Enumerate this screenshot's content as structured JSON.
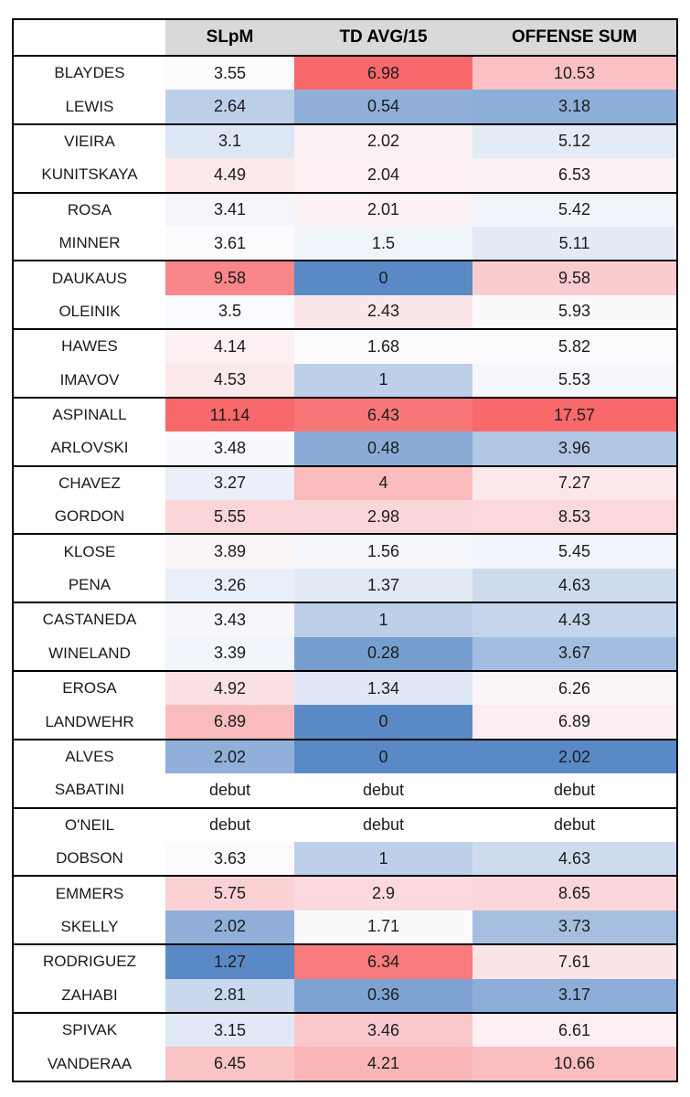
{
  "colors": {
    "background": "#FFFFFF",
    "header_bg": "#D9D9D9",
    "border": "#000000",
    "text": "#1C1C1C"
  },
  "chart_data": {
    "type": "table",
    "title": "",
    "columns": [
      "",
      "SLpM",
      "TD AVG/15",
      "OFFENSE SUM"
    ],
    "color_scale": {
      "description": "3-color conditional formatting scale applied per column",
      "min_color": "#5A8AC6",
      "mid_color": "#FCFCFF",
      "max_color": "#F8696B"
    },
    "grouping": "rows grouped in matchup pairs separated by black borders",
    "rows": [
      {
        "name": "BLAYDES",
        "values": [
          "3.55",
          "6.98",
          "10.53"
        ],
        "cell_colors": [
          "#FCFBFE",
          "#F8696B",
          "#FAC0C3"
        ]
      },
      {
        "name": "LEWIS",
        "values": [
          "2.64",
          "0.54",
          "3.18"
        ],
        "cell_colors": [
          "#BCCFE9",
          "#90B0D9",
          "#8DAED8"
        ]
      },
      {
        "name": "VIEIRA",
        "values": [
          "3.1",
          "2.02",
          "5.12"
        ],
        "cell_colors": [
          "#DDE6F4",
          "#FCF1F4",
          "#E3EBF6"
        ]
      },
      {
        "name": "KUNITSKAYA",
        "values": [
          "4.49",
          "2.04",
          "6.53"
        ],
        "cell_colors": [
          "#FBE9EC",
          "#FCF0F3",
          "#FCF1F4"
        ]
      },
      {
        "name": "ROSA",
        "values": [
          "3.41",
          "2.01",
          "5.42"
        ],
        "cell_colors": [
          "#F4F6FC",
          "#FCF1F4",
          "#F1F4FB"
        ]
      },
      {
        "name": "MINNER",
        "values": [
          "3.61",
          "1.5",
          "5.11"
        ],
        "cell_colors": [
          "#FCFAFD",
          "#F0F4FB",
          "#E3EAF6"
        ]
      },
      {
        "name": "DAUKAUS",
        "values": [
          "9.58",
          "0",
          "9.58"
        ],
        "cell_colors": [
          "#F98789",
          "#5A8AC6",
          "#FBCCCE"
        ]
      },
      {
        "name": "OLEINIK",
        "values": [
          "3.5",
          "2.43",
          "5.93"
        ],
        "cell_colors": [
          "#FAFBFE",
          "#FBE6E9",
          "#FCF9FC"
        ]
      },
      {
        "name": "HAWES",
        "values": [
          "4.14",
          "1.68",
          "5.82"
        ],
        "cell_colors": [
          "#FCF0F3",
          "#FCFAFD",
          "#FCFAFD"
        ]
      },
      {
        "name": "IMAVOV",
        "values": [
          "4.53",
          "1",
          "5.53"
        ],
        "cell_colors": [
          "#FBE9EB",
          "#BED0E9",
          "#F6F7FD"
        ]
      },
      {
        "name": "ASPINALL",
        "values": [
          "11.14",
          "6.43",
          "17.57"
        ],
        "cell_colors": [
          "#F8696B",
          "#F8787A",
          "#F8696B"
        ]
      },
      {
        "name": "ARLOVSKI",
        "values": [
          "3.48",
          "0.48",
          "3.96"
        ],
        "cell_colors": [
          "#F9FAFE",
          "#8AACD7",
          "#B0C6E4"
        ]
      },
      {
        "name": "CHAVEZ",
        "values": [
          "3.27",
          "4",
          "7.27"
        ],
        "cell_colors": [
          "#EAEFF9",
          "#FABBBD",
          "#FCE8EB"
        ]
      },
      {
        "name": "GORDON",
        "values": [
          "5.55",
          "2.98",
          "8.53"
        ],
        "cell_colors": [
          "#FBD5D8",
          "#FBD7D9",
          "#FBD9DB"
        ]
      },
      {
        "name": "KLOSE",
        "values": [
          "3.89",
          "1.56",
          "5.45"
        ],
        "cell_colors": [
          "#FCF5F8",
          "#F6F8FD",
          "#F2F5FC"
        ]
      },
      {
        "name": "PENA",
        "values": [
          "3.26",
          "1.37",
          "4.63"
        ],
        "cell_colors": [
          "#E9EFF8",
          "#E3EAF6",
          "#CEDBEF"
        ]
      },
      {
        "name": "CASTANEDA",
        "values": [
          "3.43",
          "1",
          "4.43"
        ],
        "cell_colors": [
          "#F5F7FD",
          "#BED0E9",
          "#C5D5EC"
        ]
      },
      {
        "name": "WINELAND",
        "values": [
          "3.39",
          "0.28",
          "3.67"
        ],
        "cell_colors": [
          "#F2F5FC",
          "#769ECF",
          "#A3BDE0"
        ]
      },
      {
        "name": "EROSA",
        "values": [
          "4.92",
          "1.34",
          "6.26"
        ],
        "cell_colors": [
          "#FBE1E4",
          "#E0E8F5",
          "#FCF5F8"
        ]
      },
      {
        "name": "LANDWEHR",
        "values": [
          "6.89",
          "0",
          "6.89"
        ],
        "cell_colors": [
          "#FABBBE",
          "#5A8AC6",
          "#FCEDF0"
        ]
      },
      {
        "name": "ALVES",
        "values": [
          "2.02",
          "0",
          "2.02"
        ],
        "cell_colors": [
          "#90B0D9",
          "#5A8AC6",
          "#5A8AC6"
        ]
      },
      {
        "name": "SABATINI",
        "values": [
          "debut",
          "debut",
          "debut"
        ],
        "cell_colors": [
          "#FFFFFF",
          "#FFFFFF",
          "#FFFFFF"
        ]
      },
      {
        "name": "O'NEIL",
        "values": [
          "debut",
          "debut",
          "debut"
        ],
        "cell_colors": [
          "#FFFFFF",
          "#FFFFFF",
          "#FFFFFF"
        ]
      },
      {
        "name": "DOBSON",
        "values": [
          "3.63",
          "1",
          "4.63"
        ],
        "cell_colors": [
          "#FCFAFD",
          "#BED0E9",
          "#CEDBEF"
        ]
      },
      {
        "name": "EMMERS",
        "values": [
          "5.75",
          "2.9",
          "8.65"
        ],
        "cell_colors": [
          "#FBD1D4",
          "#FBD9DC",
          "#FBD7DA"
        ]
      },
      {
        "name": "SKELLY",
        "values": [
          "2.02",
          "1.71",
          "3.73"
        ],
        "cell_colors": [
          "#90B0D9",
          "#FCF9FC",
          "#A6BFE1"
        ]
      },
      {
        "name": "RODRIGUEZ",
        "values": [
          "1.27",
          "6.34",
          "7.61"
        ],
        "cell_colors": [
          "#5A8AC6",
          "#F87B7D",
          "#FBE4E7"
        ]
      },
      {
        "name": "ZAHABI",
        "values": [
          "2.81",
          "0.36",
          "3.17"
        ],
        "cell_colors": [
          "#C9D8ED",
          "#7EA3D3",
          "#8DAED8"
        ]
      },
      {
        "name": "SPIVAK",
        "values": [
          "3.15",
          "3.46",
          "6.61"
        ],
        "cell_colors": [
          "#E1E9F6",
          "#FBC9CC",
          "#FCF0F3"
        ]
      },
      {
        "name": "VANDERAA",
        "values": [
          "6.45",
          "4.21",
          "10.66"
        ],
        "cell_colors": [
          "#FAC3C6",
          "#FAB5B7",
          "#FABEC1"
        ]
      }
    ]
  }
}
